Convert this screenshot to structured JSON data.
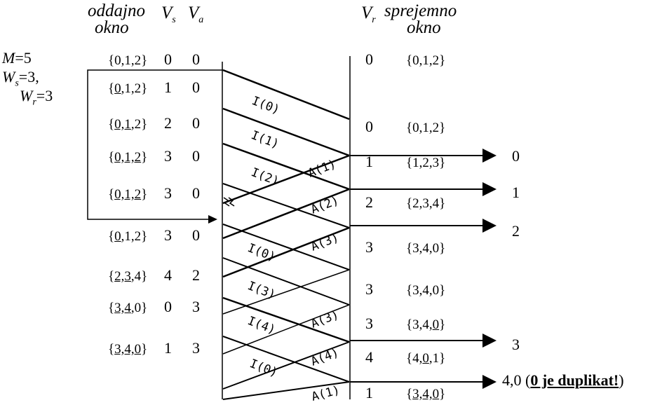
{
  "header": {
    "sender_window": "oddajno",
    "sender_window2": "okno",
    "vs": "V",
    "vs_sub": "s",
    "va": "V",
    "va_sub": "a",
    "vr": "V",
    "vr_sub": "r",
    "receiver_window": "sprejemno",
    "receiver_window2": "okno"
  },
  "params": {
    "m_label": "M",
    "m_value": "=5",
    "ws_label": "W",
    "ws_sub": "s",
    "ws_value": "=3,",
    "wr_label": "W",
    "wr_sub": "r",
    "wr_value": "=3"
  },
  "sender_rows": [
    {
      "pre": "{",
      "u": "",
      "post": "0,1,2}",
      "vs": "0",
      "va": "0"
    },
    {
      "pre": "{",
      "u": "0",
      "post": ",1,2}",
      "vs": "1",
      "va": "0"
    },
    {
      "pre": "{",
      "u": "0,1",
      "post": ",2}",
      "vs": "2",
      "va": "0"
    },
    {
      "pre": "{",
      "u": "0,1,2",
      "post": "}",
      "vs": "3",
      "va": "0"
    },
    {
      "pre": "{",
      "u": "0,1,2",
      "post": "}",
      "vs": "3",
      "va": "0"
    },
    {
      "pre": "{",
      "u": "0",
      "post": ",1,2}",
      "vs": "3",
      "va": "0"
    },
    {
      "pre": "{",
      "u": "2,3",
      "post": ",4}",
      "vs": "4",
      "va": "2"
    },
    {
      "pre": "{",
      "u": "3,4",
      "post": ",0}",
      "vs": "0",
      "va": "3"
    },
    {
      "pre": "{",
      "u": "3,4,0",
      "post": "}",
      "vs": "1",
      "va": "3"
    }
  ],
  "receiver_rows": [
    {
      "vr": "0",
      "pre": "{0,1,2}",
      "u": "",
      "post": ""
    },
    {
      "vr": "0",
      "pre": "{0,1,2}",
      "u": "",
      "post": ""
    },
    {
      "vr": "1",
      "pre": "{1,2,3}",
      "u": "",
      "post": ""
    },
    {
      "vr": "2",
      "pre": "{2,3,4}",
      "u": "",
      "post": ""
    },
    {
      "vr": "3",
      "pre": "{3,4,0}",
      "u": "",
      "post": ""
    },
    {
      "vr": "3",
      "pre": "{3,4,0}",
      "u": "",
      "post": ""
    },
    {
      "vr": "3",
      "pre": "{3,4,",
      "u": "0",
      "post": "}"
    },
    {
      "vr": "4",
      "pre": "{4,",
      "u": "0",
      "post": ",1}"
    },
    {
      "vr": "1",
      "pre": "{",
      "u": "3,4,0",
      "post": "}"
    }
  ],
  "frames": {
    "i0": "I(0)",
    "i1": "I(1)",
    "i2": "I(2)",
    "i0b": "I(0)",
    "i3": "I(3)",
    "i4": "I(4)",
    "i0c": "I(0)",
    "a1": "A(1)",
    "a2": "A(2)",
    "a3": "A(3)",
    "a3b": "A(3)",
    "a4": "A(4)",
    "a1b": "A(1)"
  },
  "deliveries": {
    "d0": "0",
    "d1": "1",
    "d2": "2",
    "d3": "3",
    "d4_pre": "4,0 (",
    "d4_u": "0 je duplikat!",
    "d4_post": ")"
  }
}
